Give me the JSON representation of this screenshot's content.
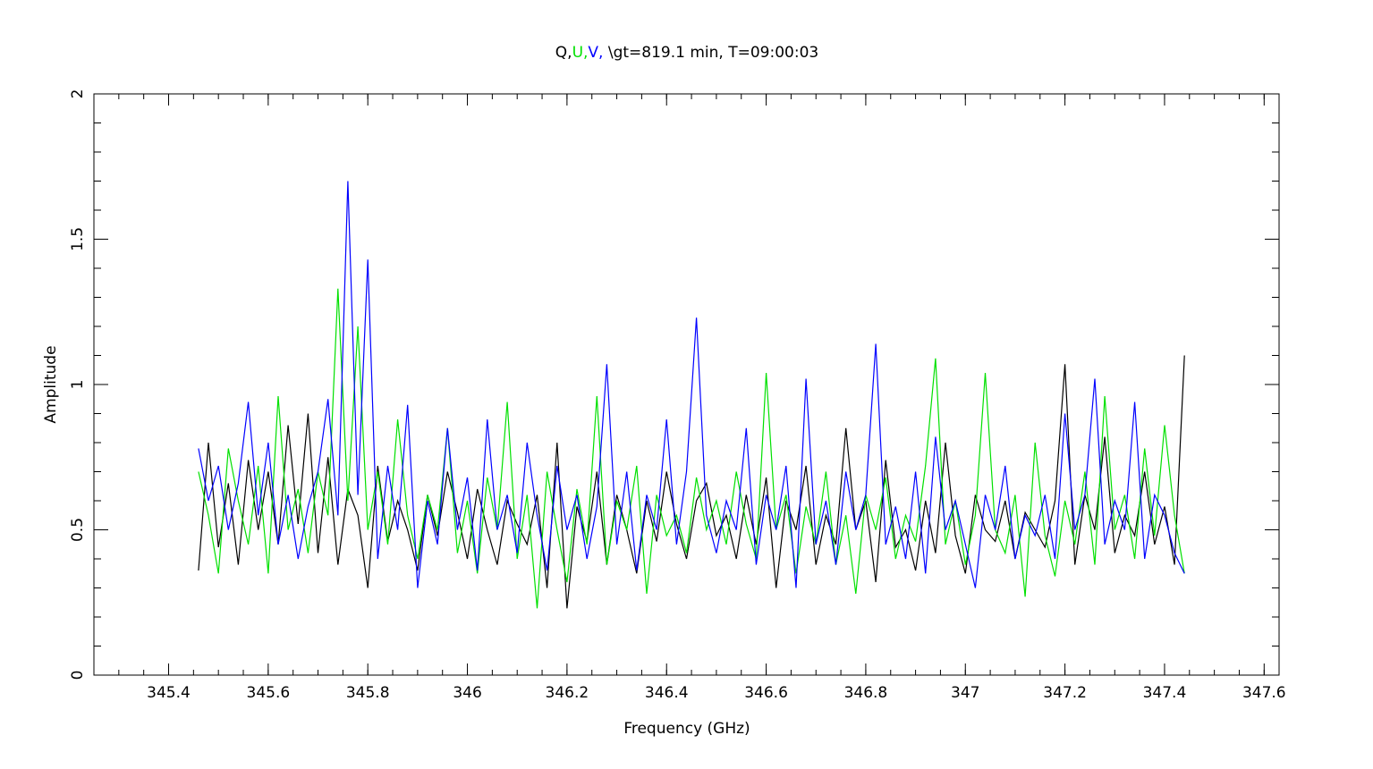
{
  "chart_data": {
    "type": "line",
    "title_parts": [
      {
        "text": "Q,",
        "color": "#000000"
      },
      {
        "text": "U,",
        "color": "#00e000"
      },
      {
        "text": "V,",
        "color": "#0000ff"
      },
      {
        "text": " \\gt=819.1 min, T=09:00:03",
        "color": "#000000"
      }
    ],
    "xlabel": "Frequency (GHz)",
    "ylabel": "Amplitude",
    "xlim": [
      345.25,
      347.63
    ],
    "ylim": [
      0,
      2
    ],
    "xticks": [
      {
        "value": 345.4,
        "label": "345.4"
      },
      {
        "value": 345.6,
        "label": "345.6"
      },
      {
        "value": 345.8,
        "label": "345.8"
      },
      {
        "value": 346.0,
        "label": "346"
      },
      {
        "value": 346.2,
        "label": "346.2"
      },
      {
        "value": 346.4,
        "label": "346.4"
      },
      {
        "value": 346.6,
        "label": "346.6"
      },
      {
        "value": 346.8,
        "label": "346.8"
      },
      {
        "value": 347.0,
        "label": "347"
      },
      {
        "value": 347.2,
        "label": "347.2"
      },
      {
        "value": 347.4,
        "label": "347.4"
      },
      {
        "value": 347.6,
        "label": "347.6"
      }
    ],
    "yticks": [
      {
        "value": 0,
        "label": "0"
      },
      {
        "value": 0.5,
        "label": "0.5"
      },
      {
        "value": 1,
        "label": "1"
      },
      {
        "value": 1.5,
        "label": "1.5"
      },
      {
        "value": 2,
        "label": "2"
      }
    ],
    "grid": false,
    "series": [
      {
        "name": "Q",
        "color": "#000000",
        "x": [
          345.46,
          345.48,
          345.5,
          345.52,
          345.54,
          345.56,
          345.58,
          345.6,
          345.62,
          345.64,
          345.66,
          345.68,
          345.7,
          345.72,
          345.74,
          345.76,
          345.78,
          345.8,
          345.82,
          345.84,
          345.86,
          345.88,
          345.9,
          345.92,
          345.94,
          345.96,
          345.98,
          346.0,
          346.02,
          346.04,
          346.06,
          346.08,
          346.1,
          346.12,
          346.14,
          346.16,
          346.18,
          346.2,
          346.22,
          346.24,
          346.26,
          346.28,
          346.3,
          346.32,
          346.34,
          346.36,
          346.38,
          346.4,
          346.42,
          346.44,
          346.46,
          346.48,
          346.5,
          346.52,
          346.54,
          346.56,
          346.58,
          346.6,
          346.62,
          346.64,
          346.66,
          346.68,
          346.7,
          346.72,
          346.74,
          346.76,
          346.78,
          346.8,
          346.82,
          346.84,
          346.86,
          346.88,
          346.9,
          346.92,
          346.94,
          346.96,
          346.98,
          347.0,
          347.02,
          347.04,
          347.06,
          347.08,
          347.1,
          347.12,
          347.14,
          347.16,
          347.18,
          347.2,
          347.22,
          347.24,
          347.26,
          347.28,
          347.3,
          347.32,
          347.34,
          347.36,
          347.38,
          347.4,
          347.42,
          347.44
        ],
        "y": [
          0.36,
          0.8,
          0.44,
          0.66,
          0.38,
          0.74,
          0.5,
          0.7,
          0.45,
          0.86,
          0.52,
          0.9,
          0.42,
          0.75,
          0.38,
          0.64,
          0.55,
          0.3,
          0.72,
          0.46,
          0.6,
          0.5,
          0.36,
          0.62,
          0.48,
          0.7,
          0.56,
          0.4,
          0.64,
          0.5,
          0.38,
          0.6,
          0.52,
          0.45,
          0.62,
          0.3,
          0.8,
          0.23,
          0.58,
          0.46,
          0.7,
          0.38,
          0.62,
          0.5,
          0.35,
          0.6,
          0.46,
          0.7,
          0.52,
          0.4,
          0.6,
          0.66,
          0.48,
          0.55,
          0.4,
          0.62,
          0.45,
          0.68,
          0.3,
          0.6,
          0.5,
          0.72,
          0.38,
          0.55,
          0.45,
          0.85,
          0.5,
          0.6,
          0.32,
          0.74,
          0.44,
          0.5,
          0.36,
          0.6,
          0.42,
          0.8,
          0.48,
          0.35,
          0.62,
          0.5,
          0.46,
          0.6,
          0.4,
          0.56,
          0.5,
          0.44,
          0.6,
          1.07,
          0.38,
          0.62,
          0.5,
          0.82,
          0.42,
          0.55,
          0.48,
          0.7,
          0.45,
          0.58,
          0.38,
          1.1
        ]
      },
      {
        "name": "U",
        "color": "#00e000",
        "x": [
          345.46,
          345.48,
          345.5,
          345.52,
          345.54,
          345.56,
          345.58,
          345.6,
          345.62,
          345.64,
          345.66,
          345.68,
          345.7,
          345.72,
          345.74,
          345.76,
          345.78,
          345.8,
          345.82,
          345.84,
          345.86,
          345.88,
          345.9,
          345.92,
          345.94,
          345.96,
          345.98,
          346.0,
          346.02,
          346.04,
          346.06,
          346.08,
          346.1,
          346.12,
          346.14,
          346.16,
          346.18,
          346.2,
          346.22,
          346.24,
          346.26,
          346.28,
          346.3,
          346.32,
          346.34,
          346.36,
          346.38,
          346.4,
          346.42,
          346.44,
          346.46,
          346.48,
          346.5,
          346.52,
          346.54,
          346.56,
          346.58,
          346.6,
          346.62,
          346.64,
          346.66,
          346.68,
          346.7,
          346.72,
          346.74,
          346.76,
          346.78,
          346.8,
          346.82,
          346.84,
          346.86,
          346.88,
          346.9,
          346.92,
          346.94,
          346.96,
          346.98,
          347.0,
          347.02,
          347.04,
          347.06,
          347.08,
          347.1,
          347.12,
          347.14,
          347.16,
          347.18,
          347.2,
          347.22,
          347.24,
          347.26,
          347.28,
          347.3,
          347.32,
          347.34,
          347.36,
          347.38,
          347.4,
          347.42,
          347.44
        ],
        "y": [
          0.7,
          0.55,
          0.35,
          0.78,
          0.6,
          0.45,
          0.72,
          0.35,
          0.96,
          0.5,
          0.64,
          0.42,
          0.7,
          0.55,
          1.33,
          0.6,
          1.2,
          0.5,
          0.7,
          0.45,
          0.88,
          0.55,
          0.4,
          0.62,
          0.5,
          0.85,
          0.42,
          0.6,
          0.35,
          0.68,
          0.5,
          0.94,
          0.4,
          0.62,
          0.23,
          0.7,
          0.5,
          0.32,
          0.64,
          0.45,
          0.96,
          0.38,
          0.6,
          0.5,
          0.72,
          0.28,
          0.62,
          0.48,
          0.55,
          0.42,
          0.68,
          0.5,
          0.6,
          0.45,
          0.7,
          0.52,
          0.4,
          1.04,
          0.5,
          0.62,
          0.35,
          0.58,
          0.45,
          0.7,
          0.38,
          0.55,
          0.28,
          0.62,
          0.5,
          0.68,
          0.4,
          0.55,
          0.46,
          0.72,
          1.09,
          0.45,
          0.6,
          0.38,
          0.55,
          1.04,
          0.5,
          0.42,
          0.62,
          0.27,
          0.8,
          0.48,
          0.34,
          0.6,
          0.45,
          0.7,
          0.38,
          0.96,
          0.5,
          0.62,
          0.4,
          0.78,
          0.48,
          0.86,
          0.55,
          0.35
        ]
      },
      {
        "name": "V",
        "color": "#0000ff",
        "x": [
          345.46,
          345.48,
          345.5,
          345.52,
          345.54,
          345.56,
          345.58,
          345.6,
          345.62,
          345.64,
          345.66,
          345.68,
          345.7,
          345.72,
          345.74,
          345.76,
          345.78,
          345.8,
          345.82,
          345.84,
          345.86,
          345.88,
          345.9,
          345.92,
          345.94,
          345.96,
          345.98,
          346.0,
          346.02,
          346.04,
          346.06,
          346.08,
          346.1,
          346.12,
          346.14,
          346.16,
          346.18,
          346.2,
          346.22,
          346.24,
          346.26,
          346.28,
          346.3,
          346.32,
          346.34,
          346.36,
          346.38,
          346.4,
          346.42,
          346.44,
          346.46,
          346.48,
          346.5,
          346.52,
          346.54,
          346.56,
          346.58,
          346.6,
          346.62,
          346.64,
          346.66,
          346.68,
          346.7,
          346.72,
          346.74,
          346.76,
          346.78,
          346.8,
          346.82,
          346.84,
          346.86,
          346.88,
          346.9,
          346.92,
          346.94,
          346.96,
          346.98,
          347.0,
          347.02,
          347.04,
          347.06,
          347.08,
          347.1,
          347.12,
          347.14,
          347.16,
          347.18,
          347.2,
          347.22,
          347.24,
          347.26,
          347.28,
          347.3,
          347.32,
          347.34,
          347.36,
          347.38,
          347.4,
          347.42,
          347.44
        ],
        "y": [
          0.78,
          0.6,
          0.72,
          0.5,
          0.66,
          0.94,
          0.55,
          0.8,
          0.45,
          0.62,
          0.4,
          0.58,
          0.7,
          0.95,
          0.55,
          1.7,
          0.62,
          1.43,
          0.4,
          0.72,
          0.5,
          0.93,
          0.3,
          0.6,
          0.45,
          0.85,
          0.5,
          0.68,
          0.36,
          0.88,
          0.5,
          0.62,
          0.42,
          0.8,
          0.55,
          0.36,
          0.72,
          0.5,
          0.62,
          0.4,
          0.58,
          1.07,
          0.45,
          0.7,
          0.36,
          0.62,
          0.5,
          0.88,
          0.45,
          0.7,
          1.23,
          0.55,
          0.42,
          0.6,
          0.5,
          0.85,
          0.38,
          0.62,
          0.5,
          0.72,
          0.3,
          1.02,
          0.45,
          0.6,
          0.38,
          0.7,
          0.5,
          0.62,
          1.14,
          0.45,
          0.58,
          0.4,
          0.7,
          0.35,
          0.82,
          0.5,
          0.6,
          0.45,
          0.3,
          0.62,
          0.5,
          0.72,
          0.4,
          0.55,
          0.48,
          0.62,
          0.4,
          0.9,
          0.5,
          0.62,
          1.02,
          0.45,
          0.6,
          0.5,
          0.94,
          0.4,
          0.62,
          0.55,
          0.42,
          0.35
        ]
      }
    ]
  }
}
